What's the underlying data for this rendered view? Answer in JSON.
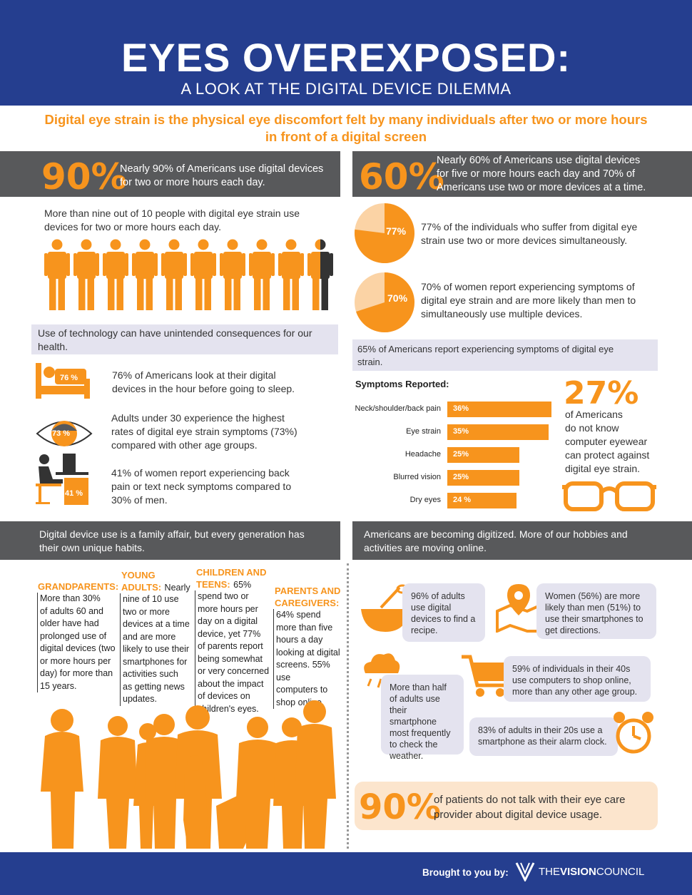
{
  "header": {
    "title": "EYES OVEREXPOSED:",
    "subtitle": "A LOOK AT THE DIGITAL DEVICE DILEMMA",
    "intro_line1": "Digital eye strain is the physical eye discomfort felt by many individuals after two or more hours",
    "intro_line2": "in front of a digital screen"
  },
  "stats_left": {
    "big": "90%",
    "text_line1": "Nearly 90% of Americans use digital devices",
    "text_line2": "for two or more hours each day.",
    "nine_of_ten_line1": "More than nine out of 10 people with digital eye strain use",
    "nine_of_ten_line2": "devices for two or more hours each day.",
    "people_count": 10,
    "people_highlighted": 9,
    "consequences_line1": "Use of technology can have unintended consequences for our",
    "consequences_line2": "health.",
    "bed": {
      "value": "76 %",
      "line1": "76% of Americans look at their digital",
      "line2": "devices in the hour before going to sleep."
    },
    "eye": {
      "value": "73 %",
      "line1": "Adults under 30 experience the highest",
      "line2": "rates of digital eye strain symptoms (73%)",
      "line3": "compared with other age groups."
    },
    "desk": {
      "value": "41 %",
      "line1": "41% of women report experiencing back",
      "line2": "pain or text neck symptoms compared to",
      "line3": "30% of men."
    }
  },
  "stats_right": {
    "big": "60%",
    "text_line1": "Nearly 60% of Americans use digital devices",
    "text_line2": "for five or more hours each day and 70% of",
    "text_line3": "Americans use two or more devices at a time.",
    "pie1": {
      "label": "77%",
      "fraction": 0.77,
      "line1": "77% of the individuals who suffer from digital eye",
      "line2": "strain use two or more devices simultaneously."
    },
    "pie2": {
      "label": "70%",
      "fraction": 0.7,
      "line1": "70% of women report experiencing symptoms of",
      "line2": "digital eye strain and are more likely than men to",
      "line3": "simultaneously use multiple devices."
    },
    "sixtyfive_line1": "65% of Americans report experiencing symptoms of digital eye",
    "sixtyfive_line2": "strain."
  },
  "chart_data": {
    "type": "bar",
    "title": "Symptoms Reported:",
    "categories": [
      "Neck/shoulder/back pain",
      "Eye strain",
      "Headache",
      "Blurred vision",
      "Dry eyes"
    ],
    "values": [
      36,
      35,
      25,
      25,
      24
    ],
    "value_labels": [
      "36%",
      "35%",
      "25%",
      "25%",
      "24 %"
    ],
    "orientation": "horizontal",
    "xlim": [
      0,
      36
    ]
  },
  "eyewear": {
    "big": "27%",
    "line1": "of Americans",
    "line2": "do not know",
    "line3": "computer eyewear",
    "line4": "can protect against",
    "line5": "digital eye strain."
  },
  "family": {
    "bar_line1": "Digital device use is a family affair, but every generation has",
    "bar_line2": "their own unique habits.",
    "grandparents": {
      "head": "GRANDPARENTS:",
      "lines": [
        "More than 30%",
        "of adults 60 and",
        "older have had",
        "prolonged use of",
        "digital devices (two",
        "or more hours per",
        "day) for more than",
        "15 years."
      ]
    },
    "young": {
      "head1": "YOUNG",
      "head2": "ADULTS:",
      "first": "Nearly",
      "lines": [
        "nine of 10 use",
        "two or more",
        "devices at a time",
        "and are more",
        "likely to use their",
        "smartphones for",
        "activities such",
        "as getting news",
        "updates."
      ]
    },
    "children": {
      "head1": "CHILDREN AND",
      "head2": "TEENS:",
      "first": "65%",
      "lines": [
        "spend two or",
        "more hours per",
        "day on a digital",
        "device, yet 77%",
        "of parents report",
        "being somewhat",
        "or very concerned",
        "about the impact",
        "of devices on",
        "children's eyes."
      ]
    },
    "parents": {
      "head1": "PARENTS AND",
      "head2": "CAREGIVERS:",
      "lines": [
        "64% spend",
        "more than five",
        "hours a day",
        "looking at digital",
        "screens. 55% use",
        "computers to",
        "shop online."
      ]
    }
  },
  "digitized": {
    "bar_line1": "Americans are becoming digitized. More of our hobbies and",
    "bar_line2": "activities are moving online.",
    "recipe": [
      "96% of adults",
      "use digital",
      "devices to find a",
      "recipe."
    ],
    "directions": [
      "Women (56%) are more",
      "likely than men (51%) to",
      "use their smartphones to",
      "get directions."
    ],
    "shop": [
      "59% of individuals in their 40s",
      "use computers to shop online,",
      "more than any other age group."
    ],
    "weather": [
      "More than half",
      "of adults use",
      "their smartphone",
      "most frequently",
      "to check the",
      "weather."
    ],
    "alarm": [
      "83% of adults in their 20s use a",
      "smartphone as their alarm clock."
    ]
  },
  "bottom_stat": {
    "big": "90%",
    "line1": "of patients do not talk with their eye care",
    "line2": "provider about digital device usage."
  },
  "footer": {
    "brought": "Brought to you by:",
    "brand_the": "THE",
    "brand_vision": "VISION",
    "brand_council": "COUNCIL"
  },
  "colors": {
    "navy": "#253e8f",
    "orange": "#f7941d",
    "gray": "#58595b",
    "lavender": "#e4e3ef",
    "cream": "#fce5cd"
  }
}
